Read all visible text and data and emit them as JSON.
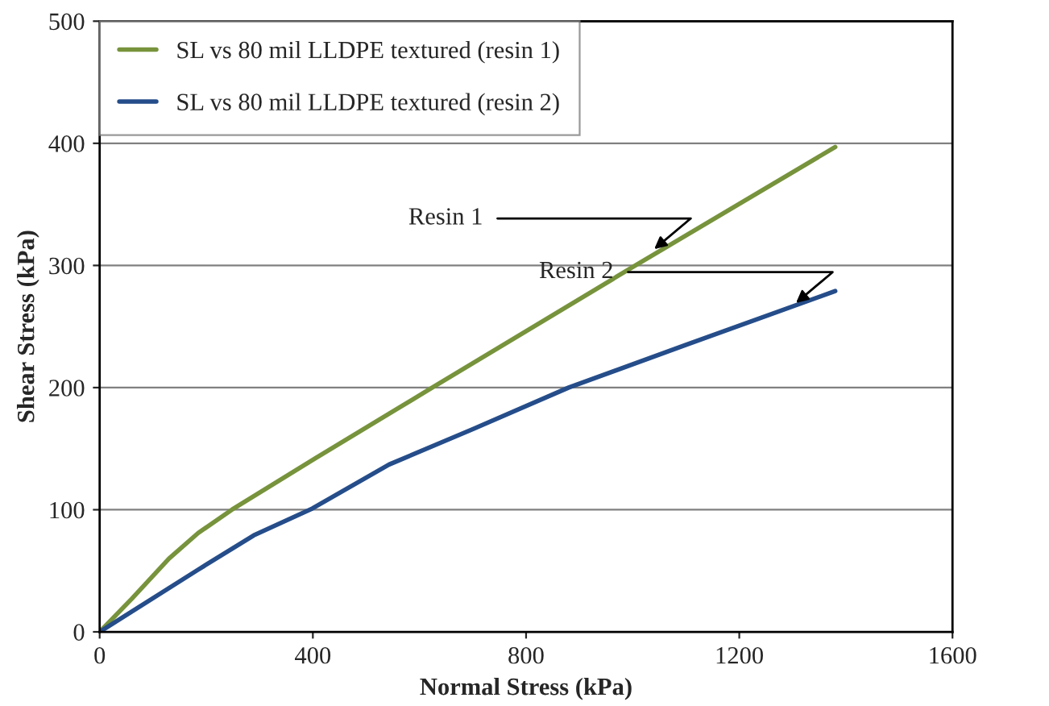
{
  "chart_data": {
    "type": "line",
    "xlabel": "Normal Stress (kPa)",
    "ylabel": "Shear Stress (kPa)",
    "series": [
      {
        "name": "SL vs 80 mil LLDPE textured (resin 1)",
        "color": "#77933c",
        "x": [
          0,
          60,
          130,
          185,
          248,
          404,
          624,
          1005,
          1380
        ],
        "values": [
          0,
          27,
          60,
          81,
          100,
          142,
          200,
          300,
          397
        ]
      },
      {
        "name": "SL vs 80 mil LLDPE textured (resin 2)",
        "color": "#254d8a",
        "x": [
          0,
          185,
          289,
          399,
          543,
          700,
          880,
          1100,
          1380
        ],
        "values": [
          0,
          51,
          79,
          101,
          137,
          166,
          200,
          235,
          279
        ]
      }
    ],
    "annotations": [
      {
        "text": "Resin 1",
        "x": 1034,
        "y": 311
      },
      {
        "text": "Resin 2",
        "x": 1300,
        "y": 267
      }
    ],
    "xlim": [
      0,
      1600
    ],
    "xticks": [
      0,
      400,
      800,
      1200,
      1600
    ],
    "ylim": [
      0,
      500
    ],
    "yticks": [
      0,
      100,
      200,
      300,
      400,
      500
    ],
    "grid": "y",
    "legend": "top left"
  }
}
